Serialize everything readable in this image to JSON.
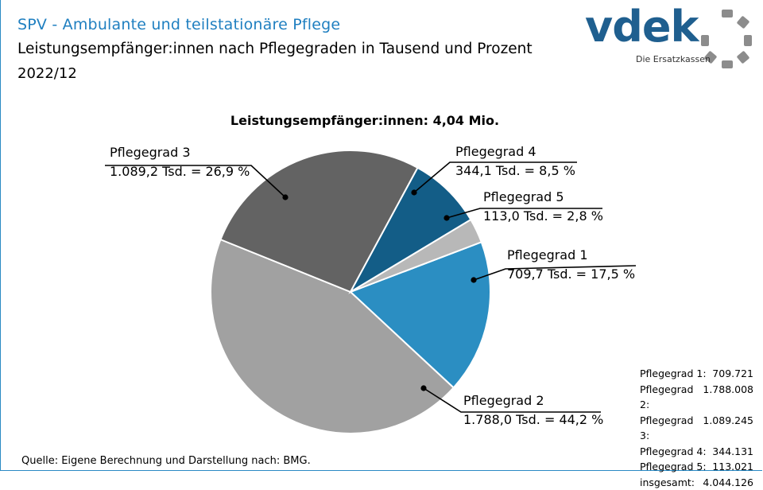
{
  "header": {
    "title": "SPV - Ambulante und teilstationäre Pflege",
    "subtitle": "Leistungsempfänger:innen  nach Pflegegraden in Tausend und Prozent",
    "period": "2022/12"
  },
  "logo": {
    "word": "vdek",
    "tagline": "Die Ersatzkassen"
  },
  "chart_data": {
    "type": "pie",
    "title": "Leistungsempfänger:innen:  4,04 Mio.",
    "slices": [
      {
        "name": "Pflegegrad 1",
        "value": 709.7,
        "percent": 17.5,
        "label": "709,7  Tsd. = 17,5  %",
        "color": "#2b8ec2"
      },
      {
        "name": "Pflegegrad 2",
        "value": 1788.0,
        "percent": 44.2,
        "label": "1.788,0  Tsd. = 44,2  %",
        "color": "#a1a1a1"
      },
      {
        "name": "Pflegegrad 3",
        "value": 1089.2,
        "percent": 26.9,
        "label": "1.089,2  Tsd. = 26,9  %",
        "color": "#636363"
      },
      {
        "name": "Pflegegrad 4",
        "value": 344.1,
        "percent": 8.5,
        "label": "344,1  Tsd. = 8,5  %",
        "color": "#135d87"
      },
      {
        "name": "Pflegegrad 5",
        "value": 113.0,
        "percent": 2.8,
        "label": "113,0  Tsd. = 2,8  %",
        "color": "#b8b8b8"
      }
    ]
  },
  "totals": [
    {
      "label": "Pflegegrad 1:",
      "value": "709.721"
    },
    {
      "label": "Pflegegrad 2:",
      "value": "1.788.008"
    },
    {
      "label": "Pflegegrad 3:",
      "value": "1.089.245"
    },
    {
      "label": "Pflegegrad 4:",
      "value": "344.131"
    },
    {
      "label": "Pflegegrad 5:",
      "value": "113.021"
    },
    {
      "label": "insgesamt:",
      "value": "4.044.126"
    }
  ],
  "source": "Quelle: Eigene Berechnung und Darstellung nach: BMG."
}
